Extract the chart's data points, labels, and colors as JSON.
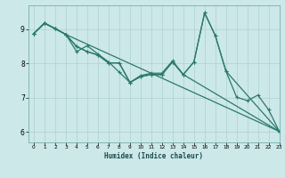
{
  "xlabel": "Humidex (Indice chaleur)",
  "bg_color": "#cce8e8",
  "line_color": "#2a7a6a",
  "xlim": [
    -0.5,
    23
  ],
  "ylim": [
    5.7,
    9.7
  ],
  "xticks": [
    0,
    1,
    2,
    3,
    4,
    5,
    6,
    7,
    8,
    9,
    10,
    11,
    12,
    13,
    14,
    15,
    16,
    17,
    18,
    19,
    20,
    21,
    22,
    23
  ],
  "yticks": [
    6,
    7,
    8,
    9
  ],
  "grid_color": "#b0d0d0",
  "lines": [
    {
      "x": [
        0,
        1,
        2,
        3,
        4,
        5,
        6,
        7,
        8,
        9,
        10,
        11,
        12,
        13,
        14,
        15,
        16,
        17,
        18,
        19,
        20,
        21,
        22,
        23
      ],
      "y": [
        8.88,
        9.18,
        9.02,
        8.85,
        8.5,
        8.35,
        8.25,
        8.02,
        8.02,
        7.45,
        7.62,
        7.68,
        7.68,
        8.05,
        7.68,
        8.05,
        9.48,
        8.82,
        7.78,
        7.02,
        6.92,
        7.08,
        6.65,
        6.02
      ]
    },
    {
      "x": [
        0,
        1,
        2,
        3,
        4,
        5,
        6,
        7,
        8,
        9,
        10,
        11,
        12,
        13,
        14,
        15,
        16,
        17,
        18,
        23
      ],
      "y": [
        8.88,
        9.18,
        9.02,
        8.85,
        8.35,
        8.52,
        8.28,
        8.05,
        7.75,
        7.45,
        7.65,
        7.72,
        7.72,
        8.08,
        7.68,
        8.05,
        9.48,
        8.82,
        7.78,
        6.02
      ]
    },
    {
      "x": [
        0,
        1,
        2,
        3,
        23
      ],
      "y": [
        8.88,
        9.18,
        9.02,
        8.85,
        6.02
      ]
    },
    {
      "x": [
        0,
        1,
        2,
        3,
        4,
        5,
        6,
        7,
        8,
        9,
        10,
        11,
        12,
        13,
        14,
        23
      ],
      "y": [
        8.88,
        9.18,
        9.02,
        8.85,
        8.5,
        8.35,
        8.25,
        8.02,
        8.02,
        7.45,
        7.62,
        7.68,
        7.68,
        8.05,
        7.68,
        6.02
      ]
    }
  ]
}
